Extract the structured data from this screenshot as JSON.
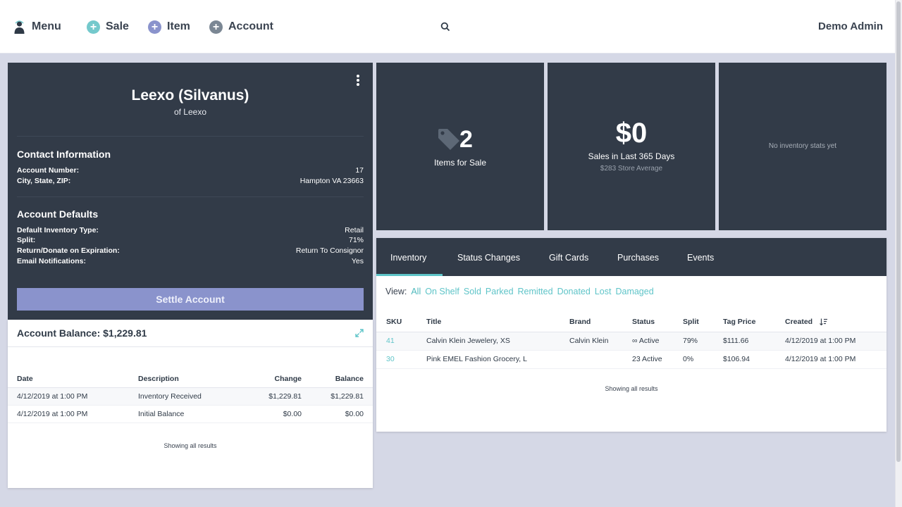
{
  "topbar": {
    "menu_label": "Menu",
    "sale_label": "Sale",
    "item_label": "Item",
    "account_label": "Account",
    "user_name": "Demo Admin",
    "plus_glyph": "+",
    "accent_sale": "#74c9cc",
    "accent_item": "#8a93cc",
    "accent_account": "#7b8794"
  },
  "account": {
    "name": "Leexo (Silvanus)",
    "subtitle": "of Leexo",
    "contact_title": "Contact Information",
    "contact": [
      {
        "label": "Account Number:",
        "value": "17"
      },
      {
        "label": "City, State, ZIP:",
        "value": "Hampton VA 23663"
      }
    ],
    "defaults_title": "Account Defaults",
    "defaults": [
      {
        "label": "Default Inventory Type:",
        "value": "Retail"
      },
      {
        "label": "Split:",
        "value": "71%"
      },
      {
        "label": "Return/Donate on Expiration:",
        "value": "Return To Consignor"
      },
      {
        "label": "Email Notifications:",
        "value": "Yes"
      }
    ],
    "settle_label": "Settle Account"
  },
  "balance": {
    "title": "Account Balance: $1,229.81",
    "columns": [
      "Date",
      "Description",
      "Change",
      "Balance"
    ],
    "rows": [
      {
        "date": "4/12/2019 at 1:00 PM",
        "description": "Inventory Received",
        "change": "$1,229.81",
        "balance": "$1,229.81"
      },
      {
        "date": "4/12/2019 at 1:00 PM",
        "description": "Initial Balance",
        "change": "$0.00",
        "balance": "$0.00"
      }
    ],
    "footer": "Showing all results"
  },
  "stats": {
    "items_count": "2",
    "items_label": "Items for Sale",
    "sales_value": "$0",
    "sales_label": "Sales in Last 365 Days",
    "store_avg": "$283 Store Average",
    "inventory_empty": "No inventory stats yet"
  },
  "inventory": {
    "tabs": [
      "Inventory",
      "Status Changes",
      "Gift Cards",
      "Purchases",
      "Events"
    ],
    "active_tab": "Inventory",
    "view_label": "View:",
    "view_options": [
      "All",
      "On Shelf",
      "Sold",
      "Parked",
      "Remitted",
      "Donated",
      "Lost",
      "Damaged"
    ],
    "columns": [
      "SKU",
      "Title",
      "Brand",
      "Status",
      "Split",
      "Tag Price",
      "Created"
    ],
    "rows": [
      {
        "sku": "41",
        "title": "Calvin Klein Jewelery, XS",
        "brand": "Calvin Klein",
        "status": "∞ Active",
        "split": "79%",
        "tag_price": "$111.66",
        "created": "4/12/2019 at 1:00 PM"
      },
      {
        "sku": "30",
        "title": "Pink EMEL Fashion Grocery, L",
        "brand": "",
        "status": "23 Active",
        "split": "0%",
        "tag_price": "$106.94",
        "created": "4/12/2019 at 1:00 PM"
      }
    ],
    "footer": "Showing all results"
  },
  "colors": {
    "dark_panel": "#323b48",
    "accent_teal": "#5ec4c8",
    "settle_button": "#8a93cc",
    "page_bg": "#d5d8e6"
  }
}
